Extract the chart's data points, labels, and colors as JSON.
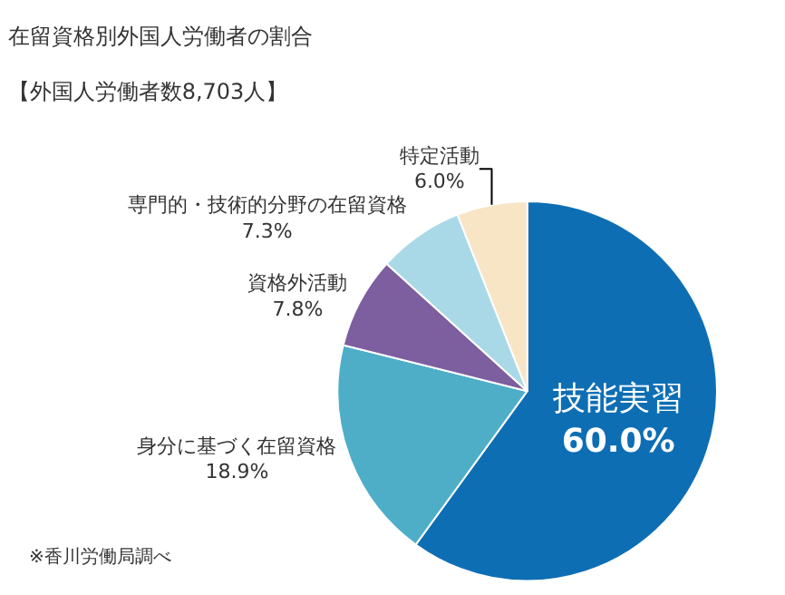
{
  "chart_data": {
    "type": "pie",
    "title": "在留資格別外国人労働者の割合",
    "subtitle": "【外国人労働者数8,703人】",
    "categories": [
      "技能実習",
      "身分に基づく在留資格",
      "資格外活動",
      "専門的・技術的分野の在留資格",
      "特定活動"
    ],
    "values": [
      60.0,
      18.9,
      7.8,
      7.3,
      6.0
    ],
    "value_labels": [
      "60.0%",
      "18.9%",
      "7.8%",
      "7.3%",
      "6.0%"
    ],
    "colors": [
      "#0e6eb4",
      "#4eaec8",
      "#7d5e9f",
      "#a9d9e7",
      "#f8e5c6"
    ],
    "legend": false,
    "annotations": [
      "※香川労働局調べ"
    ]
  }
}
